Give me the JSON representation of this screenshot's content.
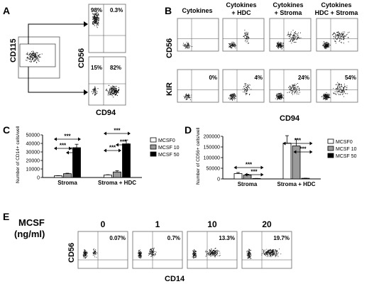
{
  "panel_labels": {
    "A": "A",
    "B": "B",
    "C": "C",
    "D": "D",
    "E": "E"
  },
  "panelA": {
    "ylabel_gate": "CD115",
    "ylabel_dot": "CD56",
    "xlabel_dot": "CD94",
    "top_quadrants": [
      "98%",
      "0.3%"
    ],
    "bottom_quadrants": [
      "15%",
      "82%"
    ]
  },
  "panelB": {
    "columns": [
      "Cytokines",
      "Cytokines\n+ HDC",
      "Cytokines\n+ Stroma",
      "Cytokines\nHDC + Stroma"
    ],
    "row_labels": [
      "CD56",
      "KIR"
    ],
    "kir_percentages": [
      "0%",
      "4%",
      "24%",
      "54%"
    ],
    "xlabel": "CD94"
  },
  "chart_data": [
    {
      "panel": "C",
      "type": "bar",
      "categories": [
        "Stroma",
        "Stroma + HDC"
      ],
      "series": [
        {
          "name": "MCSF0",
          "values": [
            2000,
            3000
          ],
          "errors": [
            200,
            300
          ],
          "color": "#ffffff"
        },
        {
          "name": "MCSF 10",
          "values": [
            4500,
            6500
          ],
          "errors": [
            500,
            1500
          ],
          "color": "#9a9a9a"
        },
        {
          "name": "MCSF 50",
          "values": [
            35000,
            39500
          ],
          "errors": [
            4000,
            4500
          ],
          "color": "#000000"
        }
      ],
      "ylabel": "Number of CD14+ cells/well",
      "ylim": [
        0,
        50000
      ],
      "yticks": [
        0,
        10000,
        20000,
        30000,
        40000,
        50000
      ],
      "significance": [
        "***",
        "***",
        "***",
        "***",
        "***",
        "***"
      ],
      "legend": "right"
    },
    {
      "panel": "D",
      "type": "bar",
      "categories": [
        "Stroma",
        "Stroma + HDC"
      ],
      "series": [
        {
          "name": "MCSF0",
          "values": [
            25000,
            168000
          ],
          "errors": [
            5000,
            35000
          ],
          "color": "#ffffff"
        },
        {
          "name": "MCSF 10",
          "values": [
            18000,
            155000
          ],
          "errors": [
            4000,
            33000
          ],
          "color": "#9a9a9a"
        },
        {
          "name": "MCSF 50",
          "values": [
            2000,
            3000
          ],
          "errors": [
            500,
            500
          ],
          "color": "#000000"
        }
      ],
      "ylabel": "Number of CD56+ cells/well",
      "ylim": [
        0,
        200000
      ],
      "yticks": [
        0,
        50000,
        100000,
        150000,
        200000
      ],
      "significance": [
        "***",
        "***",
        "***",
        "***"
      ],
      "legend": "right"
    }
  ],
  "panelE": {
    "title_line1": "MCSF",
    "title_line2": "(ng/ml)",
    "concentrations": [
      "0",
      "1",
      "10",
      "20"
    ],
    "percentages": [
      "0.07%",
      "0.7%",
      "13.3%",
      "19.7%"
    ],
    "ylabel": "CD56",
    "xlabel": "CD14"
  },
  "colors": {
    "mcsf0": "#ffffff",
    "mcsf10": "#9a9a9a",
    "mcsf50": "#000000"
  }
}
